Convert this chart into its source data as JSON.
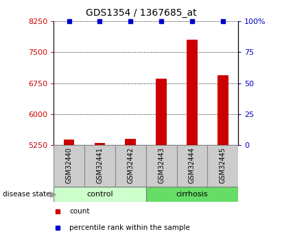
{
  "title": "GDS1354 / 1367685_at",
  "samples": [
    "GSM32440",
    "GSM32441",
    "GSM32442",
    "GSM32443",
    "GSM32444",
    "GSM32445"
  ],
  "counts": [
    5390,
    5305,
    5395,
    6860,
    7800,
    6950
  ],
  "percentile_ranks": [
    100,
    100,
    100,
    100,
    100,
    100
  ],
  "groups": [
    "control",
    "control",
    "control",
    "cirrhosis",
    "cirrhosis",
    "cirrhosis"
  ],
  "ylim_left": [
    5250,
    8250
  ],
  "ylim_right": [
    0,
    100
  ],
  "yticks_left": [
    5250,
    6000,
    6750,
    7500,
    8250
  ],
  "yticks_right": [
    0,
    25,
    50,
    75,
    100
  ],
  "bar_color": "#cc0000",
  "dot_color": "#0000cc",
  "control_color": "#ccffcc",
  "cirrhosis_color": "#66dd66",
  "group_box_color": "#cccccc",
  "background_color": "#ffffff",
  "grid_color": "#000000",
  "bar_width": 0.35,
  "legend_count_color": "#cc0000",
  "legend_pct_color": "#0000cc",
  "title_fontsize": 10,
  "tick_fontsize": 8,
  "sample_fontsize": 7,
  "group_fontsize": 8,
  "legend_fontsize": 7.5
}
